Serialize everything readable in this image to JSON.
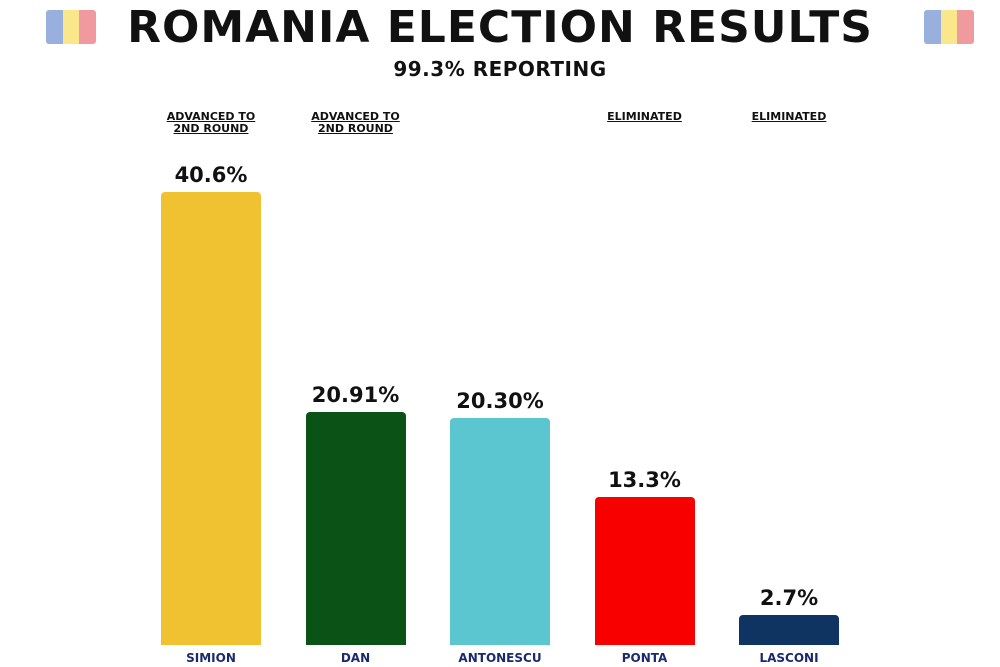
{
  "chart_data": {
    "type": "bar",
    "title": "ROMANIA ELECTION RESULTS",
    "subtitle": "99.3% REPORTING",
    "categories": [
      "SIMION",
      "DAN",
      "ANTONESCU",
      "PONTA",
      "LASCONI"
    ],
    "values": [
      40.6,
      20.91,
      20.3,
      13.3,
      2.7
    ],
    "value_labels": [
      "40.6%",
      "20.91%",
      "20.30%",
      "13.3%",
      "2.7%"
    ],
    "annotations": [
      "ADVANCED TO 2ND ROUND",
      "ADVANCED TO 2ND ROUND",
      null,
      "ELIMINATED",
      "ELIMINATED"
    ],
    "colors": [
      "#f0c232",
      "#0b5216",
      "#5bc5d0",
      "#f90000",
      "#0f3461"
    ]
  }
}
